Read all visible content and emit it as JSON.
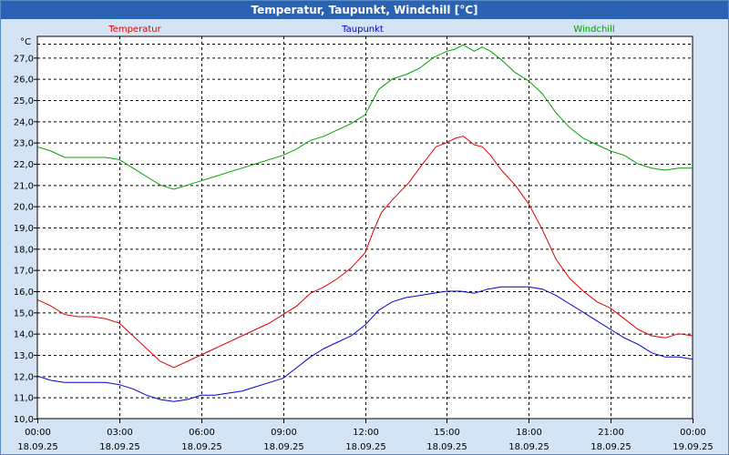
{
  "window": {
    "title": "Temperatur, Taupunkt, Windchill [°C]"
  },
  "chart_data": {
    "type": "line",
    "title": "Temperatur, Taupunkt, Windchill [°C]",
    "ylabel": "°C",
    "ylim": [
      10,
      28
    ],
    "y_ticks": [
      "10,0",
      "11,0",
      "12,0",
      "13,0",
      "14,0",
      "15,0",
      "16,0",
      "17,0",
      "18,0",
      "19,0",
      "20,0",
      "21,0",
      "22,0",
      "23,0",
      "24,0",
      "25,0",
      "26,0",
      "27,0"
    ],
    "x_range": [
      0,
      24
    ],
    "x_ticks": [
      {
        "time": "00:00",
        "date": "18.09.25"
      },
      {
        "time": "03:00",
        "date": "18.09.25"
      },
      {
        "time": "06:00",
        "date": "18.09.25"
      },
      {
        "time": "09:00",
        "date": "18.09.25"
      },
      {
        "time": "12:00",
        "date": "18.09.25"
      },
      {
        "time": "15:00",
        "date": "18.09.25"
      },
      {
        "time": "18:00",
        "date": "18.09.25"
      },
      {
        "time": "21:00",
        "date": "18.09.25"
      },
      {
        "time": "00:00",
        "date": "19.09.25"
      }
    ],
    "grid": true,
    "series": [
      {
        "name": "Temperatur",
        "color": "#e00000",
        "x": [
          0,
          0.5,
          1,
          1.5,
          2,
          2.5,
          3,
          3.5,
          4,
          4.5,
          5,
          5.5,
          6,
          6.5,
          7,
          7.5,
          8,
          8.5,
          9,
          9.5,
          10,
          10.5,
          11,
          11.5,
          12,
          12.3,
          12.6,
          13,
          13.3,
          13.6,
          14,
          14.3,
          14.6,
          15,
          15.3,
          15.6,
          16,
          16.3,
          16.6,
          17,
          17.5,
          18,
          18.5,
          19,
          19.5,
          20,
          20.5,
          21,
          21.5,
          22,
          22.5,
          23,
          23.5,
          24
        ],
        "y": [
          15.6,
          15.3,
          14.9,
          14.8,
          14.8,
          14.7,
          14.5,
          13.9,
          13.3,
          12.7,
          12.4,
          12.7,
          13.0,
          13.3,
          13.6,
          13.9,
          14.2,
          14.5,
          14.9,
          15.3,
          15.9,
          16.2,
          16.6,
          17.1,
          17.8,
          18.8,
          19.7,
          20.3,
          20.7,
          21.1,
          21.8,
          22.3,
          22.8,
          23.0,
          23.2,
          23.3,
          22.9,
          22.8,
          22.4,
          21.7,
          21.0,
          20.1,
          18.9,
          17.5,
          16.6,
          16.0,
          15.5,
          15.2,
          14.7,
          14.2,
          13.9,
          13.8,
          14.0,
          13.9
        ]
      },
      {
        "name": "Taupunkt",
        "color": "#0000cc",
        "x": [
          0,
          0.5,
          1,
          1.5,
          2,
          2.5,
          3,
          3.5,
          4,
          4.5,
          5,
          5.5,
          6,
          6.5,
          7,
          7.5,
          8,
          8.5,
          9,
          9.5,
          10,
          10.5,
          11,
          11.5,
          12,
          12.5,
          13,
          13.5,
          14,
          14.5,
          15,
          15.5,
          16,
          16.5,
          17,
          17.5,
          18,
          18.5,
          19,
          19.5,
          20,
          20.5,
          21,
          21.5,
          22,
          22.5,
          23,
          23.5,
          24
        ],
        "y": [
          12.0,
          11.8,
          11.7,
          11.7,
          11.7,
          11.7,
          11.6,
          11.4,
          11.1,
          10.9,
          10.8,
          10.9,
          11.1,
          11.1,
          11.2,
          11.3,
          11.5,
          11.7,
          11.9,
          12.4,
          12.9,
          13.3,
          13.6,
          13.9,
          14.4,
          15.1,
          15.5,
          15.7,
          15.8,
          15.9,
          16.0,
          16.0,
          15.9,
          16.1,
          16.2,
          16.2,
          16.2,
          16.1,
          15.8,
          15.4,
          15.0,
          14.6,
          14.2,
          13.8,
          13.5,
          13.1,
          12.9,
          12.9,
          12.8
        ]
      },
      {
        "name": "Windchill",
        "color": "#00a000",
        "x": [
          0,
          0.5,
          1,
          1.5,
          2,
          2.5,
          3,
          3.5,
          4,
          4.5,
          5,
          5.5,
          6,
          6.5,
          7,
          7.5,
          8,
          8.5,
          9,
          9.5,
          10,
          10.5,
          11,
          11.5,
          12,
          12.5,
          13,
          13.5,
          14,
          14.5,
          15,
          15.3,
          15.6,
          16,
          16.3,
          16.6,
          17,
          17.5,
          18,
          18.5,
          19,
          19.5,
          20,
          20.5,
          21,
          21.5,
          22,
          22.5,
          23,
          23.5,
          24
        ],
        "y": [
          22.8,
          22.6,
          22.3,
          22.3,
          22.3,
          22.3,
          22.2,
          21.8,
          21.4,
          21.0,
          20.8,
          21.0,
          21.2,
          21.4,
          21.6,
          21.8,
          22.0,
          22.2,
          22.4,
          22.7,
          23.1,
          23.3,
          23.6,
          23.9,
          24.3,
          25.5,
          26.0,
          26.2,
          26.5,
          27.0,
          27.3,
          27.4,
          27.6,
          27.3,
          27.5,
          27.3,
          26.9,
          26.3,
          25.9,
          25.3,
          24.4,
          23.7,
          23.2,
          22.9,
          22.6,
          22.4,
          22.0,
          21.8,
          21.7,
          21.8,
          21.8
        ]
      }
    ]
  }
}
